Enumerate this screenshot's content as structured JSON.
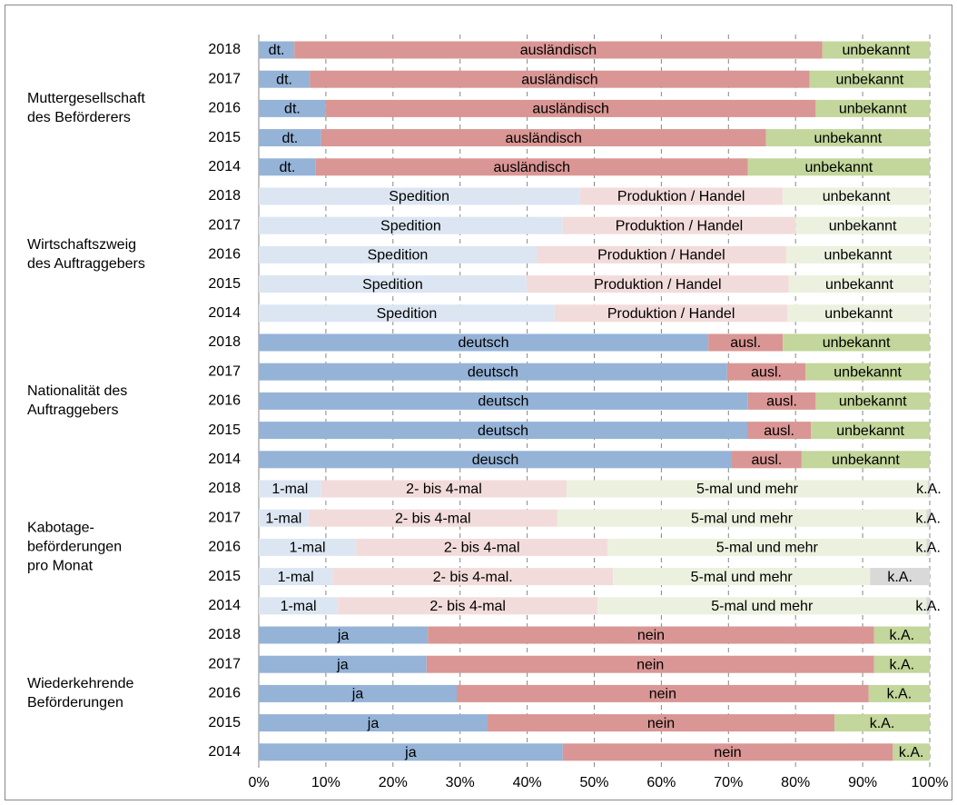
{
  "chart_data": {
    "type": "bar",
    "orientation": "horizontal",
    "stacked": true,
    "grid": true,
    "xlim": [
      0,
      100
    ],
    "xticks": [
      {
        "value": 0,
        "label": "0%"
      },
      {
        "value": 10,
        "label": "10%"
      },
      {
        "value": 20,
        "label": "20%"
      },
      {
        "value": 30,
        "label": "30%"
      },
      {
        "value": 40,
        "label": "40%"
      },
      {
        "value": 50,
        "label": "50%"
      },
      {
        "value": 60,
        "label": "60%"
      },
      {
        "value": 70,
        "label": "70%"
      },
      {
        "value": 80,
        "label": "80%"
      },
      {
        "value": 90,
        "label": "90%"
      },
      {
        "value": 100,
        "label": "100%"
      }
    ],
    "groups": [
      {
        "label": [
          "Muttergesellschaft",
          "des Beförderers"
        ],
        "colors": [
          "#95b3d7",
          "#d99694",
          "#c3d69b"
        ],
        "rows": [
          {
            "year": "2018",
            "values": [
              5.3,
              78.7,
              16.0
            ],
            "labels": [
              "dt.",
              "ausländisch",
              "unbekannt"
            ]
          },
          {
            "year": "2017",
            "values": [
              7.6,
              74.5,
              17.9
            ],
            "labels": [
              "dt.",
              "ausländisch",
              "unbekannt"
            ]
          },
          {
            "year": "2016",
            "values": [
              10.0,
              73.0,
              17.0
            ],
            "labels": [
              "dt.",
              "ausländisch",
              "unbekannt"
            ]
          },
          {
            "year": "2015",
            "values": [
              9.3,
              66.3,
              24.4
            ],
            "labels": [
              "dt.",
              "ausländisch",
              "unbekannt"
            ]
          },
          {
            "year": "2014",
            "values": [
              8.5,
              64.4,
              27.1
            ],
            "labels": [
              "dt.",
              "ausländisch",
              "unbekannt"
            ]
          }
        ]
      },
      {
        "label": [
          "Wirtschaftszweig",
          "des Auftraggebers"
        ],
        "colors": [
          "#dce6f2",
          "#f2dcdb",
          "#ebf1de"
        ],
        "rows": [
          {
            "year": "2018",
            "values": [
              47.8,
              30.3,
              21.9
            ],
            "labels": [
              "Spedition",
              "Produktion / Handel",
              "unbekannt"
            ]
          },
          {
            "year": "2017",
            "values": [
              45.3,
              34.7,
              20.0
            ],
            "labels": [
              "Spedition",
              "Produktion / Handel",
              "unbekannt"
            ]
          },
          {
            "year": "2016",
            "values": [
              41.4,
              37.2,
              21.4
            ],
            "labels": [
              "Spedition",
              "Produktion / Handel",
              "unbekannt"
            ]
          },
          {
            "year": "2015",
            "values": [
              39.9,
              39.1,
              21.0
            ],
            "labels": [
              "Spedition",
              "Produktion / Handel",
              "unbekannt"
            ]
          },
          {
            "year": "2014",
            "values": [
              44.1,
              34.7,
              21.2
            ],
            "labels": [
              "Spedition",
              "Produktion / Handel",
              "unbekannt"
            ]
          }
        ]
      },
      {
        "label": [
          "Nationalität des",
          "Auftraggebers"
        ],
        "colors": [
          "#95b3d7",
          "#d99694",
          "#c3d69b"
        ],
        "rows": [
          {
            "year": "2018",
            "values": [
              67.0,
              11.1,
              21.9
            ],
            "labels": [
              "deutsch",
              "ausl.",
              "unbekannt"
            ]
          },
          {
            "year": "2017",
            "values": [
              69.8,
              11.7,
              18.5
            ],
            "labels": [
              "deutsch",
              "ausl.",
              "unbekannt"
            ]
          },
          {
            "year": "2016",
            "values": [
              72.9,
              10.1,
              17.0
            ],
            "labels": [
              "deutsch",
              "ausl.",
              "unbekannt"
            ]
          },
          {
            "year": "2015",
            "values": [
              72.8,
              9.5,
              17.7
            ],
            "labels": [
              "deutsch",
              "ausl.",
              "unbekannt"
            ]
          },
          {
            "year": "2014",
            "values": [
              70.5,
              10.4,
              19.1
            ],
            "labels": [
              "deusch",
              "ausl.",
              "unbekannt"
            ]
          }
        ]
      },
      {
        "label": [
          "Kabotage-",
          "beförderungen",
          "pro Monat"
        ],
        "colors": [
          "#dce6f2",
          "#f2dcdb",
          "#ebf1de",
          "#d9d9d9"
        ],
        "rows": [
          {
            "year": "2018",
            "values": [
              9.3,
              36.6,
              53.8,
              0.3
            ],
            "labels": [
              "1-mal",
              "2- bis 4-mal",
              "5-mal und mehr",
              "k.A."
            ]
          },
          {
            "year": "2017",
            "values": [
              7.4,
              37.1,
              55.0,
              0.5
            ],
            "labels": [
              "1-mal",
              "2- bis 4-mal",
              "5-mal und mehr",
              "k.A."
            ]
          },
          {
            "year": "2016",
            "values": [
              14.5,
              37.5,
              47.5,
              0.5
            ],
            "labels": [
              "1-mal",
              "2- bis 4-mal",
              "5-mal und mehr",
              "k.A."
            ]
          },
          {
            "year": "2015",
            "values": [
              11.0,
              41.8,
              38.3,
              8.9
            ],
            "labels": [
              "1-mal",
              "2- bis 4-mal.",
              "5-mal und mehr",
              "k.A."
            ]
          },
          {
            "year": "2014",
            "values": [
              11.8,
              38.7,
              49.0,
              0.5
            ],
            "labels": [
              "1-mal",
              "2- bis 4-mal",
              "5-mal und mehr",
              "k.A."
            ]
          }
        ]
      },
      {
        "label": [
          "Wiederkehrende",
          "Beförderungen"
        ],
        "colors": [
          "#95b3d7",
          "#d99694",
          "#c3d69b"
        ],
        "rows": [
          {
            "year": "2018",
            "values": [
              25.2,
              66.5,
              8.3
            ],
            "labels": [
              "ja",
              "nein",
              "k.A."
            ]
          },
          {
            "year": "2017",
            "values": [
              25.0,
              66.7,
              8.3
            ],
            "labels": [
              "ja",
              "nein",
              "k.A."
            ]
          },
          {
            "year": "2016",
            "values": [
              29.5,
              61.4,
              9.1
            ],
            "labels": [
              "ja",
              "nein",
              "k.A."
            ]
          },
          {
            "year": "2015",
            "values": [
              34.1,
              51.7,
              14.2
            ],
            "labels": [
              "ja",
              "nein",
              "k.A."
            ]
          },
          {
            "year": "2014",
            "values": [
              45.3,
              49.2,
              5.5
            ],
            "labels": [
              "ja",
              "nein",
              "k.A."
            ]
          }
        ]
      }
    ]
  }
}
